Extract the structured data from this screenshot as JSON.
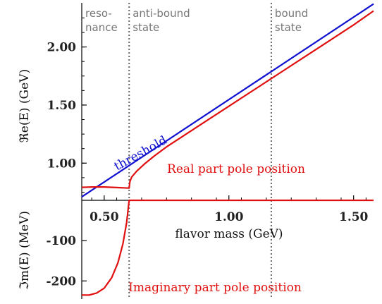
{
  "chart_data": {
    "type": "line",
    "xlabel": "flavor mass (GeV)",
    "xlim": [
      0.41,
      1.58
    ],
    "x_ticks": [
      "0.50",
      "1.00",
      "1.50"
    ],
    "x_tick_values": [
      0.5,
      1.0,
      1.5
    ],
    "top_panel": {
      "ylabel": "ℜe(E) (GeV)",
      "ylim": [
        0.68,
        2.38
      ],
      "y_ticks": [
        "1.00",
        "1.50",
        "2.00"
      ],
      "y_tick_values": [
        1.0,
        1.5,
        2.0
      ],
      "series": [
        {
          "name": "threshold",
          "color": "#1010d0",
          "x": [
            0.41,
            1.58
          ],
          "y": [
            0.71,
            2.37
          ]
        },
        {
          "name": "Real part pole position",
          "color": "#e01010",
          "x": [
            0.41,
            0.45,
            0.5,
            0.55,
            0.6,
            0.6,
            0.603,
            0.61,
            0.63,
            0.66,
            0.7,
            0.75,
            0.8,
            0.9,
            1.0,
            1.1,
            1.2,
            1.3,
            1.4,
            1.5,
            1.58
          ],
          "y": [
            0.792,
            0.795,
            0.795,
            0.79,
            0.785,
            0.785,
            0.84,
            0.88,
            0.93,
            0.99,
            1.06,
            1.14,
            1.21,
            1.35,
            1.49,
            1.63,
            1.77,
            1.91,
            2.05,
            2.19,
            2.31
          ]
        }
      ]
    },
    "bottom_panel": {
      "ylabel": "ℑm(E) (MeV)",
      "ylim": [
        -245,
        0
      ],
      "y_ticks": [
        "-100",
        "-200"
      ],
      "y_tick_values": [
        -100,
        -200
      ],
      "series": [
        {
          "name": "Imaginary part pole position",
          "color": "#e01010",
          "x": [
            0.41,
            0.44,
            0.47,
            0.5,
            0.53,
            0.555,
            0.575,
            0.59,
            0.6,
            0.6,
            1.58
          ],
          "y": [
            -235,
            -235,
            -230,
            -218,
            -192,
            -155,
            -108,
            -55,
            0,
            0,
            0
          ]
        }
      ]
    },
    "regions": [
      {
        "label_lines": [
          "reso-",
          "nance"
        ],
        "x_start": 0.41,
        "x_end": 0.6
      },
      {
        "label_lines": [
          "anti-bound",
          "state"
        ],
        "x_start": 0.6,
        "x_end": 1.17
      },
      {
        "label_lines": [
          "bound",
          "state"
        ],
        "x_start": 1.17,
        "x_end": 1.58
      }
    ],
    "boundaries_x": [
      0.6,
      1.17
    ],
    "annotations": {
      "threshold": "threshold",
      "real": "Real part pole position",
      "imaginary": "Imaginary part pole position"
    }
  }
}
